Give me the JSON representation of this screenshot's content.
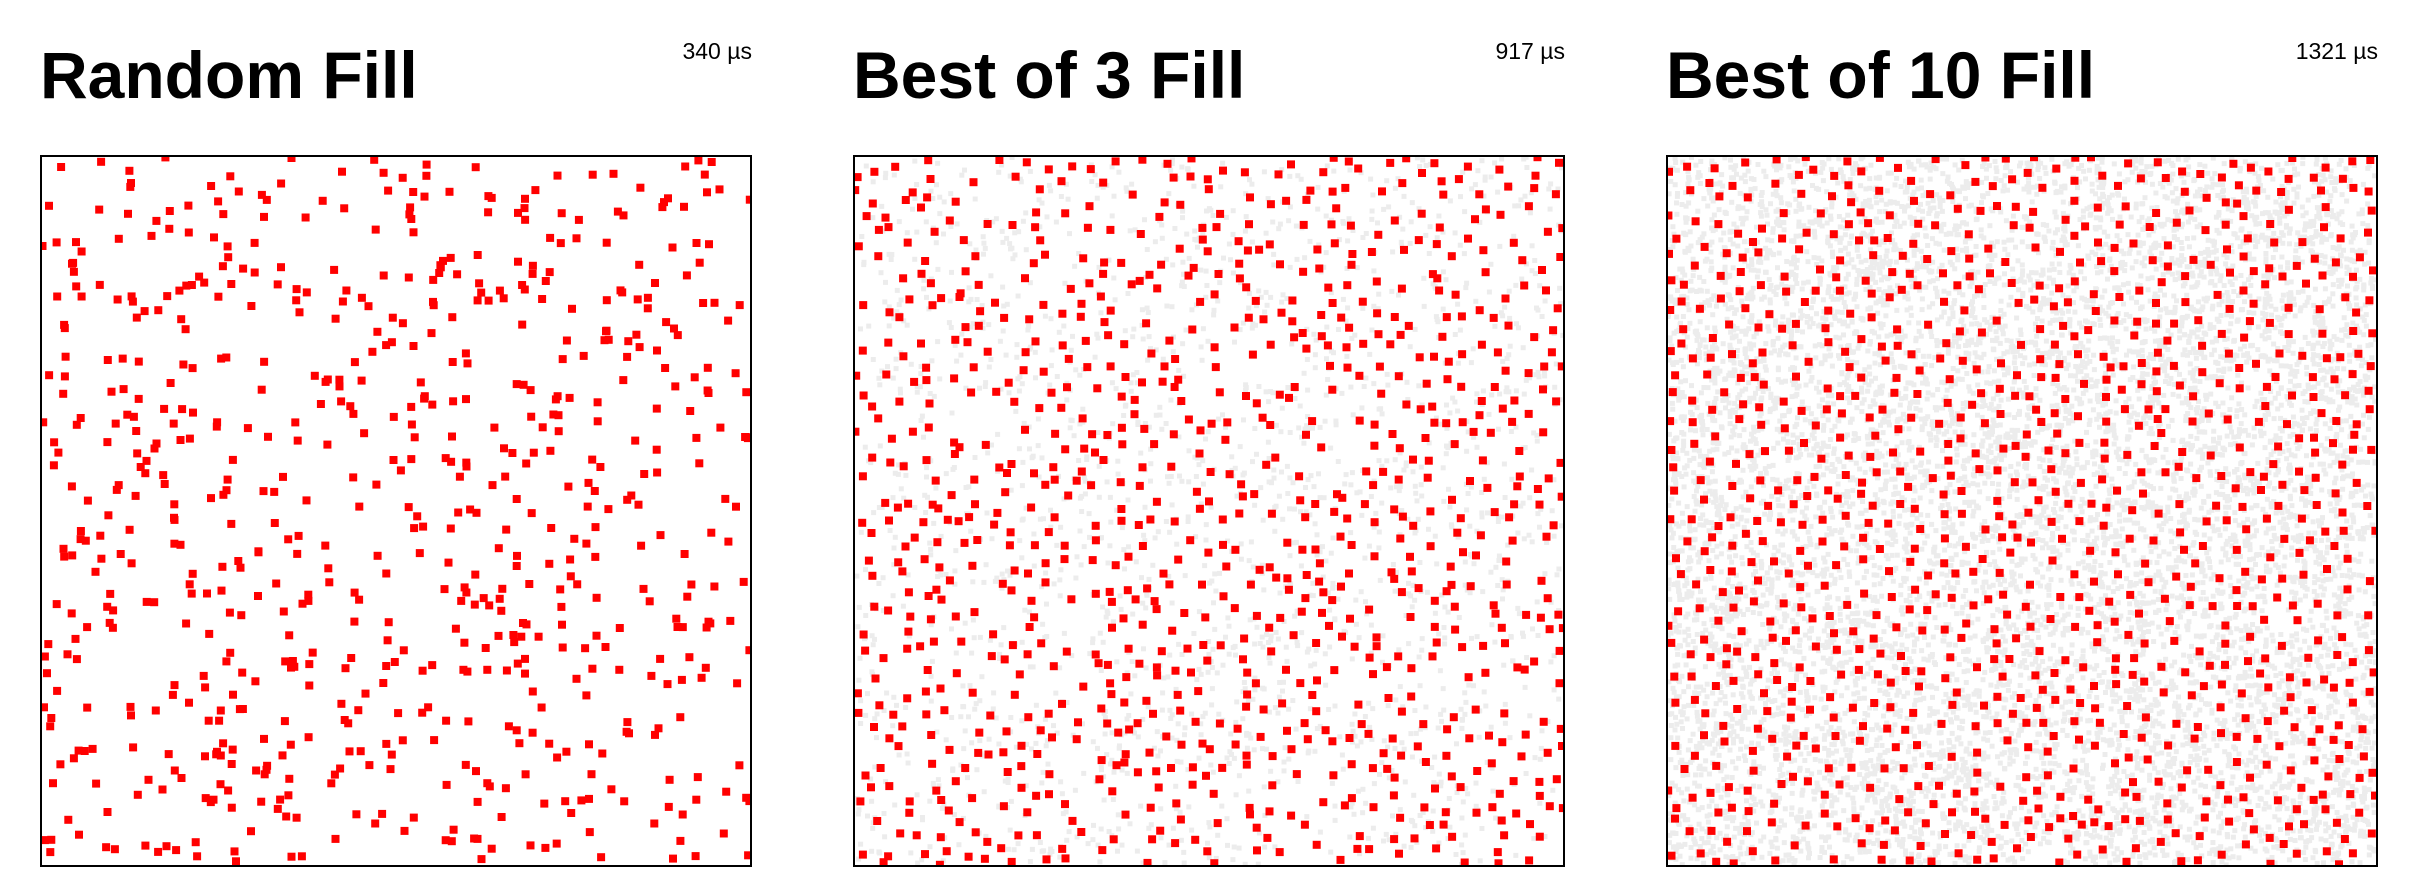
{
  "panels": [
    {
      "title": "Random Fill",
      "timing": "340 µs"
    },
    {
      "title": "Best of 3 Fill",
      "timing": "917 µs"
    },
    {
      "title": "Best of 10 Fill",
      "timing": "1321 µs"
    }
  ],
  "colors": {
    "sample": "#ff0000",
    "candidate": "#ececec",
    "border": "#000000",
    "background": "#ffffff"
  },
  "chart_data": [
    {
      "type": "scatter",
      "title": "Random Fill",
      "annotation": "340 µs",
      "method": "random",
      "candidates_per_sample": 1,
      "sample_count": 700,
      "xlim": [
        0,
        1
      ],
      "ylim": [
        0,
        1
      ],
      "grid": false
    },
    {
      "type": "scatter",
      "title": "Best of 3 Fill",
      "annotation": "917 µs",
      "method": "best-candidate",
      "candidates_per_sample": 3,
      "sample_count": 900,
      "xlim": [
        0,
        1
      ],
      "ylim": [
        0,
        1
      ],
      "grid": false
    },
    {
      "type": "scatter",
      "title": "Best of 10 Fill",
      "annotation": "1321 µs",
      "method": "best-candidate",
      "candidates_per_sample": 10,
      "sample_count": 1000,
      "xlim": [
        0,
        1
      ],
      "ylim": [
        0,
        1
      ],
      "grid": false
    }
  ]
}
